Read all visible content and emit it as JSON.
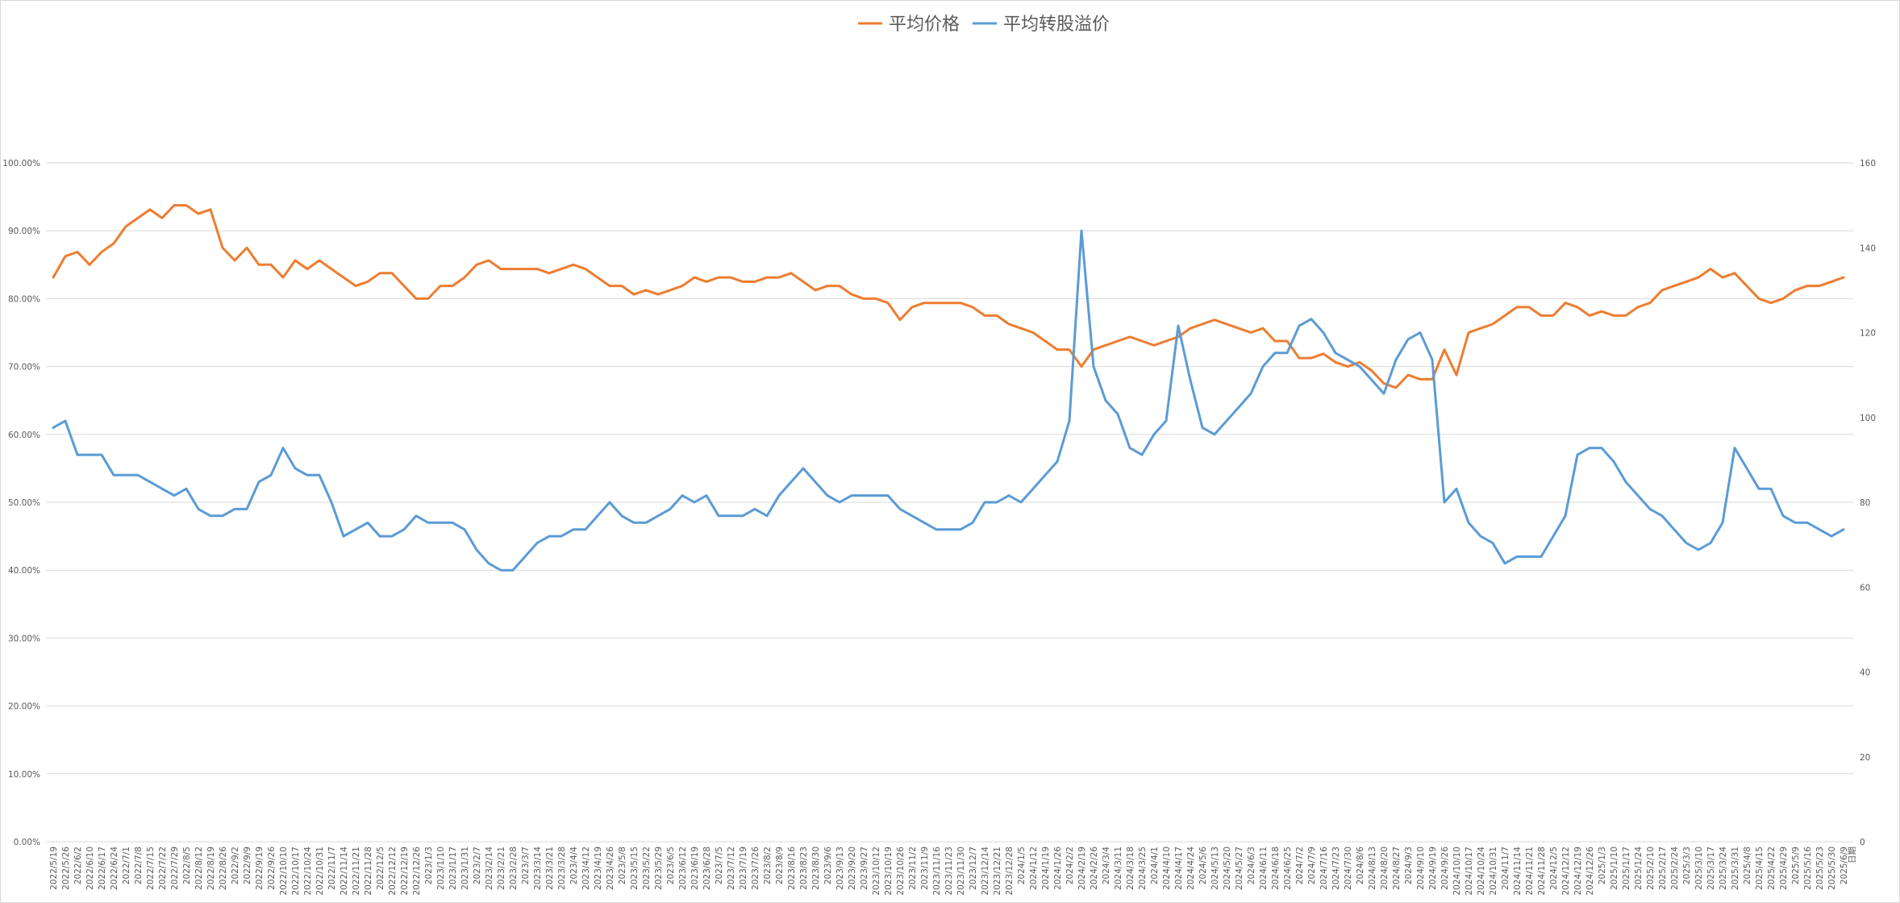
{
  "chart_data": {
    "type": "line",
    "legend": {
      "position": "top",
      "entries": [
        "平均价格",
        "平均转股溢价"
      ]
    },
    "xlabel": "日期",
    "grid": true,
    "y_left": {
      "min": 0,
      "max": 100,
      "step": 10,
      "format": "percent",
      "tick_labels": [
        "0.00%",
        "10.00%",
        "20.00%",
        "30.00%",
        "40.00%",
        "50.00%",
        "60.00%",
        "70.00%",
        "80.00%",
        "90.00%",
        "100.00%"
      ]
    },
    "y_right": {
      "min": 0,
      "max": 160,
      "step": 20,
      "tick_labels": [
        "0",
        "20",
        "40",
        "60",
        "80",
        "100",
        "120",
        "140",
        "160"
      ]
    },
    "x": [
      "2022/5/19",
      "2022/5/26",
      "2022/6/2",
      "2022/6/10",
      "2022/6/17",
      "2022/6/24",
      "2022/7/1",
      "2022/7/8",
      "2022/7/15",
      "2022/7/22",
      "2022/7/29",
      "2022/8/5",
      "2022/8/12",
      "2022/8/19",
      "2022/8/26",
      "2022/9/2",
      "2022/9/9",
      "2022/9/19",
      "2022/9/26",
      "2022/10/10",
      "2022/10/17",
      "2022/10/24",
      "2022/10/31",
      "2022/11/7",
      "2022/11/14",
      "2022/11/21",
      "2022/11/28",
      "2022/12/5",
      "2022/12/12",
      "2022/12/19",
      "2022/12/26",
      "2023/1/3",
      "2023/1/10",
      "2023/1/17",
      "2023/1/31",
      "2023/2/7",
      "2023/2/14",
      "2023/2/21",
      "2023/2/28",
      "2023/3/7",
      "2023/3/14",
      "2023/3/21",
      "2023/3/28",
      "2023/4/4",
      "2023/4/12",
      "2023/4/19",
      "2023/4/26",
      "2023/5/8",
      "2023/5/15",
      "2023/5/22",
      "2023/5/29",
      "2023/6/5",
      "2023/6/12",
      "2023/6/19",
      "2023/6/28",
      "2023/7/5",
      "2023/7/12",
      "2023/7/19",
      "2023/7/26",
      "2023/8/2",
      "2023/8/9",
      "2023/8/16",
      "2023/8/23",
      "2023/8/30",
      "2023/9/6",
      "2023/9/13",
      "2023/9/20",
      "2023/9/27",
      "2023/10/12",
      "2023/10/19",
      "2023/10/26",
      "2023/11/2",
      "2023/11/9",
      "2023/11/16",
      "2023/11/23",
      "2023/11/30",
      "2023/12/7",
      "2023/12/14",
      "2023/12/21",
      "2023/12/28",
      "2024/1/5",
      "2024/1/12",
      "2024/1/19",
      "2024/1/26",
      "2024/2/2",
      "2024/2/19",
      "2024/2/26",
      "2024/3/4",
      "2024/3/11",
      "2024/3/18",
      "2024/3/25",
      "2024/4/1",
      "2024/4/10",
      "2024/4/17",
      "2024/4/24",
      "2024/5/6",
      "2024/5/13",
      "2024/5/20",
      "2024/5/27",
      "2024/6/3",
      "2024/6/11",
      "2024/6/18",
      "2024/6/25",
      "2024/7/2",
      "2024/7/9",
      "2024/7/16",
      "2024/7/23",
      "2024/7/30",
      "2024/8/6",
      "2024/8/13",
      "2024/8/20",
      "2024/8/27",
      "2024/9/3",
      "2024/9/10",
      "2024/9/19",
      "2024/9/26",
      "2024/10/10",
      "2024/10/17",
      "2024/10/24",
      "2024/10/31",
      "2024/11/7",
      "2024/11/14",
      "2024/11/21",
      "2024/11/28",
      "2024/12/5",
      "2024/12/12",
      "2024/12/19",
      "2024/12/26",
      "2025/1/3",
      "2025/1/10",
      "2025/1/17",
      "2025/1/24",
      "2025/2/10",
      "2025/2/17",
      "2025/2/24",
      "2025/3/3",
      "2025/3/10",
      "2025/3/17",
      "2025/3/24",
      "2025/3/31",
      "2025/4/8",
      "2025/4/15",
      "2025/4/22",
      "2025/4/29",
      "2025/5/9",
      "2025/5/16",
      "2025/5/23",
      "2025/5/30",
      "2025/6/9"
    ],
    "series": [
      {
        "name": "平均价格",
        "axis": "right",
        "color": "#ED7D31",
        "values": [
          133,
          138,
          139,
          136,
          139,
          141,
          145,
          147,
          149,
          147,
          150,
          150,
          148,
          149,
          140,
          137,
          140,
          136,
          136,
          133,
          137,
          135,
          137,
          135,
          133,
          131,
          132,
          134,
          134,
          131,
          128,
          128,
          131,
          131,
          133,
          136,
          137,
          135,
          135,
          135,
          135,
          134,
          135,
          136,
          135,
          133,
          131,
          131,
          129,
          130,
          129,
          130,
          131,
          133,
          132,
          133,
          133,
          132,
          132,
          133,
          133,
          134,
          132,
          130,
          131,
          131,
          129,
          128,
          128,
          127,
          123,
          126,
          127,
          127,
          127,
          127,
          126,
          124,
          124,
          122,
          121,
          120,
          118,
          116,
          116,
          112,
          116,
          117,
          118,
          119,
          118,
          117,
          118,
          119,
          121,
          122,
          123,
          122,
          121,
          120,
          121,
          118,
          118,
          114,
          114,
          115,
          113,
          112,
          113,
          111,
          108,
          107,
          110,
          109,
          109,
          116,
          110,
          120,
          121,
          122,
          124,
          126,
          126,
          124,
          124,
          127,
          126,
          124,
          125,
          124,
          124,
          126,
          127,
          130,
          131,
          132,
          133,
          135,
          133,
          134,
          131,
          128,
          127,
          128,
          130,
          131,
          131,
          132,
          133
        ]
      },
      {
        "name": "平均转股溢价",
        "axis": "left",
        "color": "#5B9BD5",
        "values": [
          61,
          62,
          57,
          57,
          57,
          54,
          54,
          54,
          53,
          52,
          51,
          52,
          49,
          48,
          48,
          49,
          49,
          53,
          54,
          58,
          55,
          54,
          54,
          50,
          45,
          46,
          47,
          45,
          45,
          46,
          48,
          47,
          47,
          47,
          46,
          43,
          41,
          40,
          40,
          42,
          44,
          45,
          45,
          46,
          46,
          48,
          50,
          48,
          47,
          47,
          48,
          49,
          51,
          50,
          51,
          48,
          48,
          48,
          49,
          48,
          51,
          53,
          55,
          53,
          51,
          50,
          51,
          51,
          51,
          51,
          49,
          48,
          47,
          46,
          46,
          46,
          47,
          50,
          50,
          51,
          50,
          52,
          54,
          56,
          62,
          90,
          70,
          65,
          63,
          58,
          57,
          60,
          62,
          76,
          68,
          61,
          60,
          62,
          64,
          66,
          70,
          72,
          72,
          76,
          77,
          75,
          72,
          71,
          70,
          68,
          66,
          71,
          74,
          75,
          71,
          50,
          52,
          47,
          45,
          44,
          41,
          42,
          42,
          42,
          45,
          48,
          57,
          58,
          58,
          56,
          53,
          51,
          49,
          48,
          46,
          44,
          43,
          44,
          47,
          58,
          55,
          52,
          52,
          48,
          47,
          47,
          46,
          45,
          46
        ]
      }
    ]
  }
}
